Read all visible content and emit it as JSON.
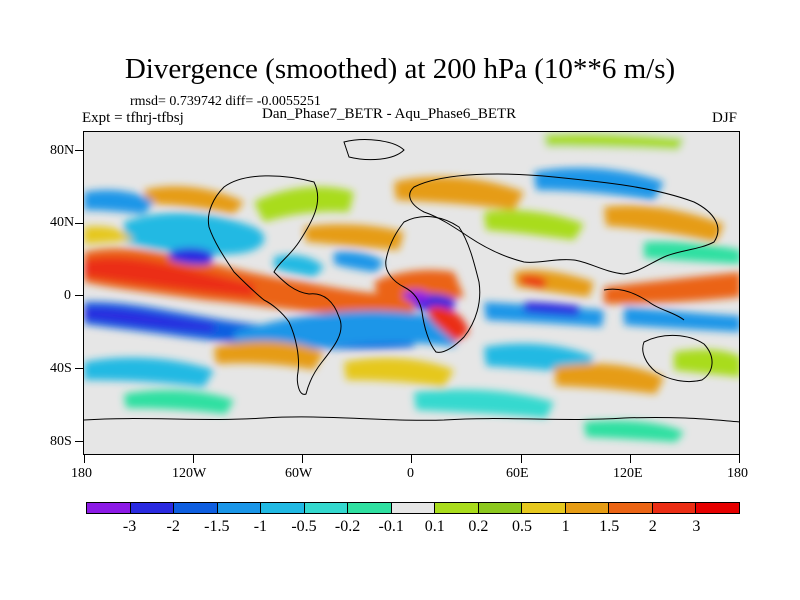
{
  "title": "Divergence (smoothed) at 200 hPa (10**6 m/s)",
  "stats": "rmsd= 0.739742 diff= -0.0055251",
  "subtitle": "Dan_Phase7_BETR - Aqu_Phase6_BETR",
  "expt": "Expt = tfhrj-tfbsj",
  "season": "DJF",
  "axes": {
    "y_labels": [
      "80N",
      "40N",
      "0",
      "40S",
      "80S"
    ],
    "x_labels": [
      "180",
      "120W",
      "60W",
      "0",
      "60E",
      "120E",
      "180"
    ]
  },
  "colorbar": {
    "labels": [
      "-3",
      "-2",
      "-1.5",
      "-1",
      "-0.5",
      "-0.2",
      "-0.1",
      "0.1",
      "0.2",
      "0.5",
      "1",
      "1.5",
      "2",
      "3"
    ],
    "colors": [
      "#8c1ae6",
      "#2a2ae0",
      "#0e5ee0",
      "#1a96e8",
      "#21b9e3",
      "#34d9cf",
      "#2fe0a1",
      "#e6e6e6",
      "#a9dc1c",
      "#8cc81e",
      "#e6c81e",
      "#e69c14",
      "#eb6414",
      "#eb2d14",
      "#e60000"
    ]
  }
}
